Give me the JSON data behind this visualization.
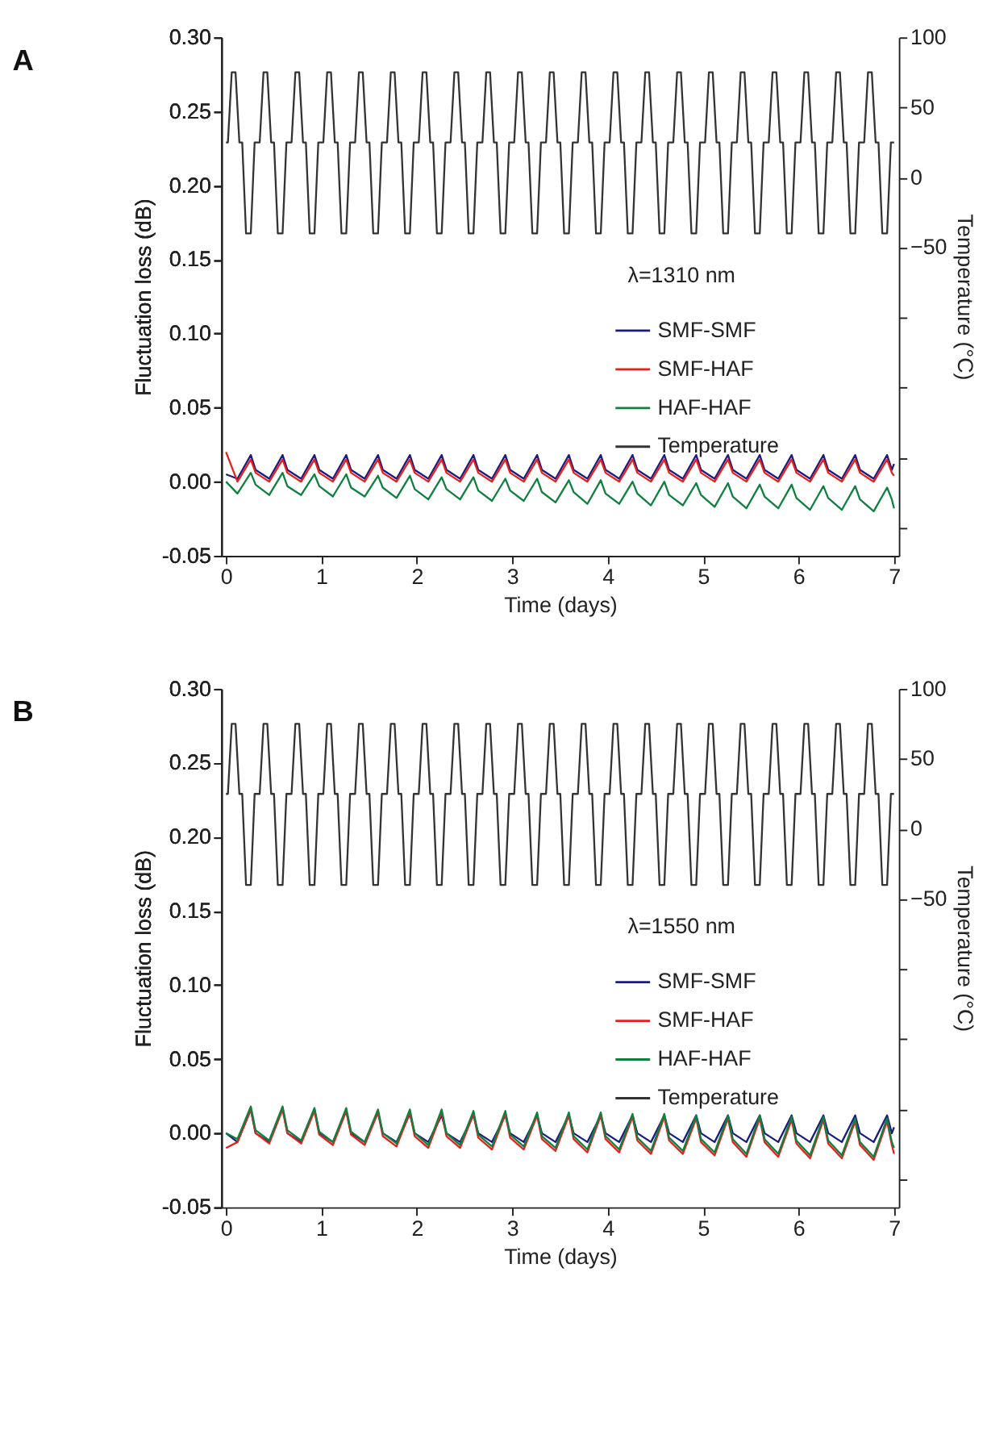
{
  "chart_data": [
    {
      "type": "line",
      "title": "A",
      "xlabel": "Time (days)",
      "ylabel": "Fluctuation loss (dB)",
      "y2label": "Temperature (°C)",
      "annotations": [
        "λ=1310 nm"
      ],
      "legend": "right",
      "xlim": [
        -0.05,
        7.05
      ],
      "xticks": [
        0,
        1,
        2,
        3,
        4,
        5,
        6,
        7
      ],
      "ylim": [
        -0.05,
        0.3
      ],
      "yticks": [
        {
          "value": -0.05,
          "label": "-0.05"
        },
        {
          "value": 0,
          "label": "0.00"
        },
        {
          "value": 0.05,
          "label": "0.05"
        },
        {
          "value": 0.1,
          "label": "0.10"
        },
        {
          "value": 0.15,
          "label": "0.15"
        },
        {
          "value": 0.2,
          "label": "0.20"
        },
        {
          "value": 0.25,
          "label": "0.25"
        },
        {
          "value": 0.3,
          "label": "0.30"
        }
      ],
      "y2lim": [
        -270,
        100
      ],
      "y2ticks": [
        {
          "value": -250,
          "label": null
        },
        {
          "value": -200,
          "label": null
        },
        {
          "value": -150,
          "label": null
        },
        {
          "value": -100,
          "label": null
        },
        -50,
        0,
        50,
        100
      ],
      "x": [
        0,
        0.12,
        0.26,
        0.31,
        0.453,
        0.593,
        0.643,
        0.787,
        0.927,
        0.977,
        1.12,
        1.26,
        1.31,
        1.453,
        1.593,
        1.643,
        1.787,
        1.927,
        1.977,
        2.12,
        2.26,
        2.31,
        2.453,
        2.593,
        2.643,
        2.787,
        2.927,
        2.977,
        3.12,
        3.26,
        3.31,
        3.453,
        3.593,
        3.643,
        3.787,
        3.927,
        3.977,
        4.12,
        4.26,
        4.31,
        4.453,
        4.593,
        4.643,
        4.787,
        4.927,
        4.977,
        5.12,
        5.26,
        5.31,
        5.453,
        5.593,
        5.643,
        5.787,
        5.927,
        5.977,
        6.12,
        6.26,
        6.31,
        6.453,
        6.593,
        6.643,
        6.787,
        6.927,
        6.977,
        7.0
      ],
      "series": [
        {
          "name": "SMF-SMF",
          "color": "#1c1c80",
          "values": [
            0.005,
            0.002,
            0.018,
            0.008,
            0.002,
            0.018,
            0.008,
            0.002,
            0.018,
            0.008,
            0.002,
            0.018,
            0.008,
            0.002,
            0.018,
            0.008,
            0.002,
            0.018,
            0.008,
            0.002,
            0.018,
            0.008,
            0.002,
            0.018,
            0.008,
            0.002,
            0.018,
            0.008,
            0.002,
            0.018,
            0.008,
            0.002,
            0.018,
            0.008,
            0.002,
            0.018,
            0.008,
            0.002,
            0.018,
            0.008,
            0.002,
            0.018,
            0.008,
            0.002,
            0.018,
            0.008,
            0.002,
            0.018,
            0.008,
            0.002,
            0.018,
            0.008,
            0.002,
            0.018,
            0.008,
            0.002,
            0.018,
            0.008,
            0.002,
            0.018,
            0.008,
            0.002,
            0.018,
            0.008,
            0.012
          ]
        },
        {
          "name": "SMF-HAF",
          "color": "#e8201c",
          "values": [
            0.02,
            0.0,
            0.015,
            0.006,
            0.0,
            0.015,
            0.006,
            0.0,
            0.015,
            0.006,
            0.0,
            0.015,
            0.006,
            0.0,
            0.015,
            0.006,
            0.0,
            0.015,
            0.006,
            0.0,
            0.015,
            0.006,
            0.0,
            0.015,
            0.006,
            0.0,
            0.015,
            0.006,
            0.0,
            0.015,
            0.006,
            0.0,
            0.015,
            0.006,
            0.0,
            0.015,
            0.006,
            0.0,
            0.015,
            0.006,
            0.0,
            0.015,
            0.006,
            0.0,
            0.015,
            0.006,
            0.0,
            0.015,
            0.006,
            0.0,
            0.015,
            0.006,
            0.0,
            0.015,
            0.006,
            0.0,
            0.015,
            0.006,
            0.0,
            0.015,
            0.006,
            0.0,
            0.015,
            0.006,
            0.004
          ]
        },
        {
          "name": "HAF-HAF",
          "color": "#108040",
          "values": [
            0.0,
            -0.008,
            0.006,
            -0.002,
            -0.009,
            0.006,
            -0.003,
            -0.009,
            0.005,
            -0.003,
            -0.01,
            0.005,
            -0.004,
            -0.01,
            0.004,
            -0.004,
            -0.011,
            0.004,
            -0.005,
            -0.012,
            0.003,
            -0.005,
            -0.012,
            0.003,
            -0.006,
            -0.013,
            0.002,
            -0.006,
            -0.013,
            0.002,
            -0.007,
            -0.014,
            0.001,
            -0.007,
            -0.015,
            0.001,
            -0.008,
            -0.015,
            0.0,
            -0.008,
            -0.016,
            0.0,
            -0.009,
            -0.016,
            -0.001,
            -0.009,
            -0.017,
            -0.001,
            -0.01,
            -0.018,
            -0.002,
            -0.01,
            -0.018,
            -0.002,
            -0.011,
            -0.019,
            -0.003,
            -0.011,
            -0.019,
            -0.003,
            -0.012,
            -0.02,
            -0.004,
            -0.012,
            -0.018
          ]
        },
        {
          "name": "Temperature",
          "color": "#333333",
          "axis": "y2",
          "x": [
            0,
            0.02,
            0.06,
            0.1,
            0.14,
            0.17,
            0.21,
            0.26,
            0.3,
            0.353,
            0.393,
            0.433,
            0.473,
            0.503,
            0.543,
            0.593,
            0.633,
            0.687,
            0.727,
            0.767,
            0.807,
            0.837,
            0.877,
            0.927,
            0.967,
            1.02,
            1.06,
            1.1,
            1.14,
            1.17,
            1.21,
            1.26,
            1.3,
            1.353,
            1.393,
            1.433,
            1.473,
            1.503,
            1.543,
            1.593,
            1.633,
            1.687,
            1.727,
            1.767,
            1.807,
            1.837,
            1.877,
            1.927,
            1.967,
            2.02,
            2.06,
            2.1,
            2.14,
            2.17,
            2.21,
            2.26,
            2.3,
            2.353,
            2.393,
            2.433,
            2.473,
            2.503,
            2.543,
            2.593,
            2.633,
            2.687,
            2.727,
            2.767,
            2.807,
            2.837,
            2.877,
            2.927,
            2.967,
            3.02,
            3.06,
            3.1,
            3.14,
            3.17,
            3.21,
            3.26,
            3.3,
            3.353,
            3.393,
            3.433,
            3.473,
            3.503,
            3.543,
            3.593,
            3.633,
            3.687,
            3.727,
            3.767,
            3.807,
            3.837,
            3.877,
            3.927,
            3.967,
            4.02,
            4.06,
            4.1,
            4.14,
            4.17,
            4.21,
            4.26,
            4.3,
            4.353,
            4.393,
            4.433,
            4.473,
            4.503,
            4.543,
            4.593,
            4.633,
            4.687,
            4.727,
            4.767,
            4.807,
            4.837,
            4.877,
            4.927,
            4.967,
            5.02,
            5.06,
            5.1,
            5.14,
            5.17,
            5.21,
            5.26,
            5.3,
            5.353,
            5.393,
            5.433,
            5.473,
            5.503,
            5.543,
            5.593,
            5.633,
            5.687,
            5.727,
            5.767,
            5.807,
            5.837,
            5.877,
            5.927,
            5.967,
            6.02,
            6.06,
            6.1,
            6.14,
            6.17,
            6.21,
            6.26,
            6.3,
            6.353,
            6.393,
            6.433,
            6.473,
            6.503,
            6.543,
            6.593,
            6.633,
            6.687,
            6.727,
            6.767,
            6.807,
            6.837,
            6.877,
            6.927,
            6.967,
            7.0
          ],
          "values": [
            25,
            25,
            75,
            75,
            25,
            25,
            -40,
            -40,
            25,
            25,
            75,
            75,
            25,
            25,
            -40,
            -40,
            25,
            25,
            75,
            75,
            25,
            25,
            -40,
            -40,
            25,
            25,
            75,
            75,
            25,
            25,
            -40,
            -40,
            25,
            25,
            75,
            75,
            25,
            25,
            -40,
            -40,
            25,
            25,
            75,
            75,
            25,
            25,
            -40,
            -40,
            25,
            25,
            75,
            75,
            25,
            25,
            -40,
            -40,
            25,
            25,
            75,
            75,
            25,
            25,
            -40,
            -40,
            25,
            25,
            75,
            75,
            25,
            25,
            -40,
            -40,
            25,
            25,
            75,
            75,
            25,
            25,
            -40,
            -40,
            25,
            25,
            75,
            75,
            25,
            25,
            -40,
            -40,
            25,
            25,
            75,
            75,
            25,
            25,
            -40,
            -40,
            25,
            25,
            75,
            75,
            25,
            25,
            -40,
            -40,
            25,
            25,
            75,
            75,
            25,
            25,
            -40,
            -40,
            25,
            25,
            75,
            75,
            25,
            25,
            -40,
            -40,
            25,
            25,
            75,
            75,
            25,
            25,
            -40,
            -40,
            25,
            25,
            75,
            75,
            25,
            25,
            -40,
            -40,
            25,
            25,
            75,
            75,
            25,
            25,
            -40,
            -40,
            25,
            25,
            75,
            75,
            25,
            25,
            -40,
            -40,
            25,
            25,
            75,
            75,
            25,
            25,
            -40,
            -40,
            25,
            25,
            75,
            75,
            25,
            25,
            -40,
            -40,
            25,
            25
          ]
        }
      ]
    },
    {
      "type": "line",
      "title": "B",
      "xlabel": "Time (days)",
      "ylabel": "Fluctuation loss (dB)",
      "y2label": "Temperature (°C)",
      "annotations": [
        "λ=1550 nm"
      ],
      "legend": "right",
      "xlim": [
        -0.05,
        7.05
      ],
      "xticks": [
        0,
        1,
        2,
        3,
        4,
        5,
        6,
        7
      ],
      "ylim": [
        -0.05,
        0.3
      ],
      "yticks": [
        {
          "value": -0.05,
          "label": "-0.05"
        },
        {
          "value": 0,
          "label": "0.00"
        },
        {
          "value": 0.05,
          "label": "0.05"
        },
        {
          "value": 0.1,
          "label": "0.10"
        },
        {
          "value": 0.15,
          "label": "0.15"
        },
        {
          "value": 0.2,
          "label": "0.20"
        },
        {
          "value": 0.25,
          "label": "0.25"
        },
        {
          "value": 0.3,
          "label": "0.30"
        }
      ],
      "y2lim": [
        -270,
        100
      ],
      "y2ticks": [
        {
          "value": -250,
          "label": null
        },
        {
          "value": -200,
          "label": null
        },
        {
          "value": -150,
          "label": null
        },
        {
          "value": -100,
          "label": null
        },
        -50,
        0,
        50,
        100
      ],
      "x": [
        0,
        0.12,
        0.26,
        0.31,
        0.453,
        0.593,
        0.643,
        0.787,
        0.927,
        0.977,
        1.12,
        1.26,
        1.31,
        1.453,
        1.593,
        1.643,
        1.787,
        1.927,
        1.977,
        2.12,
        2.26,
        2.31,
        2.453,
        2.593,
        2.643,
        2.787,
        2.927,
        2.977,
        3.12,
        3.26,
        3.31,
        3.453,
        3.593,
        3.643,
        3.787,
        3.927,
        3.977,
        4.12,
        4.26,
        4.31,
        4.453,
        4.593,
        4.643,
        4.787,
        4.927,
        4.977,
        5.12,
        5.26,
        5.31,
        5.453,
        5.593,
        5.643,
        5.787,
        5.927,
        5.977,
        6.12,
        6.26,
        6.31,
        6.453,
        6.593,
        6.643,
        6.787,
        6.927,
        6.977,
        7.0
      ],
      "series": [
        {
          "name": "SMF-SMF",
          "color": "#1c1c80",
          "values": [
            0.0,
            -0.006,
            0.016,
            0.0,
            -0.006,
            0.017,
            0.0,
            -0.006,
            0.016,
            0.0,
            -0.006,
            0.015,
            0.0,
            -0.006,
            0.014,
            0.0,
            -0.006,
            0.013,
            0.0,
            -0.006,
            0.012,
            0.0,
            -0.006,
            0.012,
            0.0,
            -0.006,
            0.012,
            0.0,
            -0.006,
            0.012,
            0.0,
            -0.006,
            0.012,
            0.0,
            -0.006,
            0.012,
            0.0,
            -0.006,
            0.012,
            0.0,
            -0.006,
            0.012,
            0.0,
            -0.006,
            0.012,
            0.0,
            -0.006,
            0.012,
            0.0,
            -0.006,
            0.012,
            0.0,
            -0.006,
            0.012,
            0.0,
            -0.006,
            0.012,
            0.0,
            -0.006,
            0.012,
            0.0,
            -0.006,
            0.012,
            0.0,
            0.004
          ]
        },
        {
          "name": "SMF-HAF",
          "color": "#e8201c",
          "values": [
            -0.01,
            -0.006,
            0.016,
            0.0,
            -0.007,
            0.016,
            0.0,
            -0.007,
            0.015,
            -0.001,
            -0.008,
            0.015,
            -0.001,
            -0.008,
            0.014,
            -0.002,
            -0.009,
            0.014,
            -0.002,
            -0.01,
            0.014,
            -0.002,
            -0.01,
            0.013,
            -0.003,
            -0.011,
            0.013,
            -0.003,
            -0.011,
            0.012,
            -0.004,
            -0.012,
            0.012,
            -0.004,
            -0.013,
            0.012,
            -0.004,
            -0.013,
            0.011,
            -0.005,
            -0.014,
            0.011,
            -0.005,
            -0.014,
            0.01,
            -0.006,
            -0.015,
            0.01,
            -0.006,
            -0.016,
            0.01,
            -0.006,
            -0.016,
            0.009,
            -0.007,
            -0.017,
            0.009,
            -0.007,
            -0.017,
            0.008,
            -0.008,
            -0.018,
            0.008,
            -0.008,
            -0.014
          ]
        },
        {
          "name": "HAF-HAF",
          "color": "#108040",
          "values": [
            0.0,
            -0.004,
            0.018,
            0.002,
            -0.005,
            0.018,
            0.002,
            -0.005,
            0.017,
            0.001,
            -0.006,
            0.017,
            0.001,
            -0.006,
            0.016,
            0.0,
            -0.007,
            0.016,
            0.0,
            -0.008,
            0.016,
            0.0,
            -0.008,
            0.015,
            -0.001,
            -0.009,
            0.015,
            -0.001,
            -0.009,
            0.014,
            -0.002,
            -0.01,
            0.014,
            -0.002,
            -0.011,
            0.014,
            -0.002,
            -0.011,
            0.013,
            -0.003,
            -0.012,
            0.013,
            -0.003,
            -0.012,
            0.012,
            -0.004,
            -0.013,
            0.012,
            -0.004,
            -0.014,
            0.012,
            -0.004,
            -0.014,
            0.011,
            -0.005,
            -0.015,
            0.011,
            -0.005,
            -0.015,
            0.01,
            -0.006,
            -0.016,
            0.01,
            -0.006,
            -0.01
          ]
        },
        {
          "name": "Temperature",
          "color": "#333333",
          "axis": "y2",
          "x": [
            0,
            0.02,
            0.06,
            0.1,
            0.14,
            0.17,
            0.21,
            0.26,
            0.3,
            0.353,
            0.393,
            0.433,
            0.473,
            0.503,
            0.543,
            0.593,
            0.633,
            0.687,
            0.727,
            0.767,
            0.807,
            0.837,
            0.877,
            0.927,
            0.967,
            1.02,
            1.06,
            1.1,
            1.14,
            1.17,
            1.21,
            1.26,
            1.3,
            1.353,
            1.393,
            1.433,
            1.473,
            1.503,
            1.543,
            1.593,
            1.633,
            1.687,
            1.727,
            1.767,
            1.807,
            1.837,
            1.877,
            1.927,
            1.967,
            2.02,
            2.06,
            2.1,
            2.14,
            2.17,
            2.21,
            2.26,
            2.3,
            2.353,
            2.393,
            2.433,
            2.473,
            2.503,
            2.543,
            2.593,
            2.633,
            2.687,
            2.727,
            2.767,
            2.807,
            2.837,
            2.877,
            2.927,
            2.967,
            3.02,
            3.06,
            3.1,
            3.14,
            3.17,
            3.21,
            3.26,
            3.3,
            3.353,
            3.393,
            3.433,
            3.473,
            3.503,
            3.543,
            3.593,
            3.633,
            3.687,
            3.727,
            3.767,
            3.807,
            3.837,
            3.877,
            3.927,
            3.967,
            4.02,
            4.06,
            4.1,
            4.14,
            4.17,
            4.21,
            4.26,
            4.3,
            4.353,
            4.393,
            4.433,
            4.473,
            4.503,
            4.543,
            4.593,
            4.633,
            4.687,
            4.727,
            4.767,
            4.807,
            4.837,
            4.877,
            4.927,
            4.967,
            5.02,
            5.06,
            5.1,
            5.14,
            5.17,
            5.21,
            5.26,
            5.3,
            5.353,
            5.393,
            5.433,
            5.473,
            5.503,
            5.543,
            5.593,
            5.633,
            5.687,
            5.727,
            5.767,
            5.807,
            5.837,
            5.877,
            5.927,
            5.967,
            6.02,
            6.06,
            6.1,
            6.14,
            6.17,
            6.21,
            6.26,
            6.3,
            6.353,
            6.393,
            6.433,
            6.473,
            6.503,
            6.543,
            6.593,
            6.633,
            6.687,
            6.727,
            6.767,
            6.807,
            6.837,
            6.877,
            6.927,
            6.967,
            7.0
          ],
          "values": [
            25,
            25,
            75,
            75,
            25,
            25,
            -40,
            -40,
            25,
            25,
            75,
            75,
            25,
            25,
            -40,
            -40,
            25,
            25,
            75,
            75,
            25,
            25,
            -40,
            -40,
            25,
            25,
            75,
            75,
            25,
            25,
            -40,
            -40,
            25,
            25,
            75,
            75,
            25,
            25,
            -40,
            -40,
            25,
            25,
            75,
            75,
            25,
            25,
            -40,
            -40,
            25,
            25,
            75,
            75,
            25,
            25,
            -40,
            -40,
            25,
            25,
            75,
            75,
            25,
            25,
            -40,
            -40,
            25,
            25,
            75,
            75,
            25,
            25,
            -40,
            -40,
            25,
            25,
            75,
            75,
            25,
            25,
            -40,
            -40,
            25,
            25,
            75,
            75,
            25,
            25,
            -40,
            -40,
            25,
            25,
            75,
            75,
            25,
            25,
            -40,
            -40,
            25,
            25,
            75,
            75,
            25,
            25,
            -40,
            -40,
            25,
            25,
            75,
            75,
            25,
            25,
            -40,
            -40,
            25,
            25,
            75,
            75,
            25,
            25,
            -40,
            -40,
            25,
            25,
            75,
            75,
            25,
            25,
            -40,
            -40,
            25,
            25,
            75,
            75,
            25,
            25,
            -40,
            -40,
            25,
            25,
            75,
            75,
            25,
            25,
            -40,
            -40,
            25,
            25,
            75,
            75,
            25,
            25,
            -40,
            -40,
            25,
            25,
            75,
            75,
            25,
            25,
            -40,
            -40,
            25,
            25,
            75,
            75,
            25,
            25,
            -40,
            -40,
            25,
            25
          ]
        }
      ]
    }
  ]
}
